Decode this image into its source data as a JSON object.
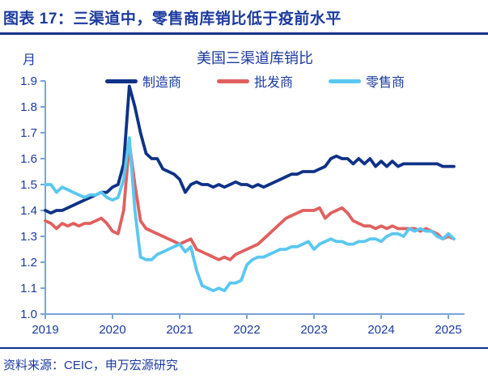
{
  "header": {
    "title": "图表 17：三渠道中，零售商库销比低于疫前水平"
  },
  "footer": {
    "source": "资料来源：CEIC，申万宏源研究"
  },
  "colors": {
    "accent_navy": "#10328a",
    "text_navy": "#1b3a9e",
    "axis_blue": "#7aa4d8",
    "manufacturer_line": "#0f3287",
    "wholesaler_line": "#e06060",
    "retailer_line": "#5bc7f0"
  },
  "chart_data": {
    "type": "line",
    "title": "美国三渠道库销比",
    "unit_label": "月",
    "grid": false,
    "legend_position": "top-center",
    "ylim": [
      1.0,
      1.9
    ],
    "y_ticks": [
      "1.0",
      "1.1",
      "1.2",
      "1.3",
      "1.4",
      "1.5",
      "1.6",
      "1.7",
      "1.8",
      "1.9"
    ],
    "x_ticks": [
      "2019",
      "2020",
      "2021",
      "2022",
      "2023",
      "2024",
      "2025"
    ],
    "x_start_month": "2019-01",
    "x_end_month": "2025-02",
    "series": [
      {
        "name": "制造商",
        "key": "manufacturer",
        "color": "#0f3287",
        "values": [
          1.4,
          1.39,
          1.4,
          1.4,
          1.41,
          1.42,
          1.43,
          1.44,
          1.45,
          1.46,
          1.47,
          1.47,
          1.49,
          1.5,
          1.58,
          1.88,
          1.8,
          1.7,
          1.62,
          1.6,
          1.6,
          1.56,
          1.55,
          1.54,
          1.52,
          1.47,
          1.5,
          1.51,
          1.5,
          1.5,
          1.49,
          1.5,
          1.49,
          1.5,
          1.51,
          1.5,
          1.5,
          1.49,
          1.5,
          1.49,
          1.5,
          1.51,
          1.52,
          1.53,
          1.54,
          1.54,
          1.55,
          1.55,
          1.55,
          1.56,
          1.57,
          1.6,
          1.61,
          1.6,
          1.6,
          1.58,
          1.6,
          1.58,
          1.6,
          1.57,
          1.59,
          1.57,
          1.59,
          1.57,
          1.58,
          1.58,
          1.58,
          1.58,
          1.58,
          1.58,
          1.58,
          1.57,
          1.57,
          1.57
        ]
      },
      {
        "name": "批发商",
        "key": "wholesaler",
        "color": "#e06060",
        "values": [
          1.36,
          1.35,
          1.33,
          1.35,
          1.34,
          1.35,
          1.34,
          1.35,
          1.35,
          1.36,
          1.37,
          1.35,
          1.32,
          1.31,
          1.4,
          1.66,
          1.5,
          1.36,
          1.33,
          1.32,
          1.31,
          1.3,
          1.29,
          1.28,
          1.27,
          1.28,
          1.29,
          1.25,
          1.24,
          1.23,
          1.22,
          1.21,
          1.22,
          1.21,
          1.23,
          1.24,
          1.25,
          1.26,
          1.27,
          1.29,
          1.31,
          1.33,
          1.35,
          1.37,
          1.38,
          1.39,
          1.4,
          1.4,
          1.4,
          1.41,
          1.37,
          1.39,
          1.4,
          1.41,
          1.39,
          1.36,
          1.35,
          1.34,
          1.34,
          1.33,
          1.34,
          1.33,
          1.34,
          1.33,
          1.33,
          1.33,
          1.33,
          1.32,
          1.33,
          1.32,
          1.31,
          1.29,
          1.3,
          1.29
        ]
      },
      {
        "name": "零售商",
        "key": "retailer",
        "color": "#5bc7f0",
        "values": [
          1.5,
          1.5,
          1.47,
          1.49,
          1.48,
          1.47,
          1.46,
          1.45,
          1.46,
          1.46,
          1.47,
          1.45,
          1.44,
          1.45,
          1.52,
          1.68,
          1.4,
          1.22,
          1.21,
          1.21,
          1.23,
          1.24,
          1.25,
          1.26,
          1.27,
          1.24,
          1.26,
          1.17,
          1.11,
          1.1,
          1.09,
          1.1,
          1.09,
          1.12,
          1.12,
          1.13,
          1.19,
          1.21,
          1.22,
          1.22,
          1.23,
          1.24,
          1.25,
          1.25,
          1.26,
          1.26,
          1.27,
          1.28,
          1.25,
          1.27,
          1.28,
          1.29,
          1.28,
          1.28,
          1.27,
          1.27,
          1.28,
          1.28,
          1.29,
          1.29,
          1.28,
          1.3,
          1.31,
          1.31,
          1.3,
          1.33,
          1.32,
          1.33,
          1.32,
          1.32,
          1.3,
          1.29,
          1.31,
          1.29
        ]
      }
    ]
  }
}
